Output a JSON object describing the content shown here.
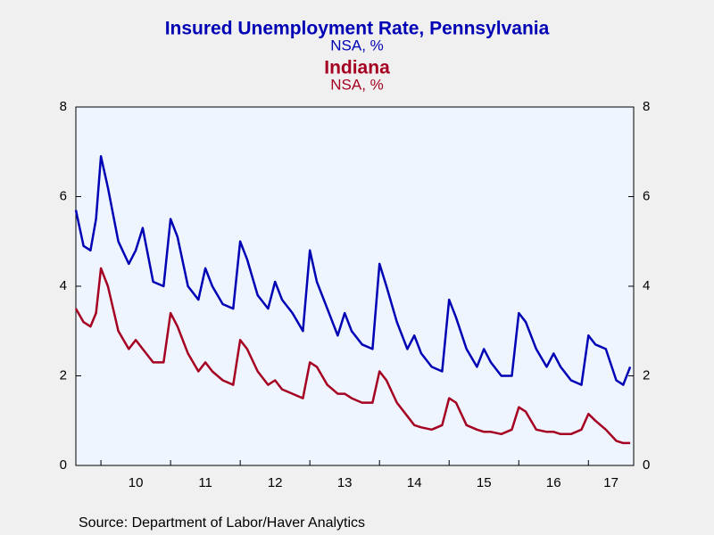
{
  "chart_data": {
    "type": "line",
    "source": "Source:  Department of Labor/Haver Analytics",
    "x": [
      2009.64,
      2009.75,
      2009.85,
      2009.93,
      2010.0,
      2010.1,
      2010.25,
      2010.4,
      2010.5,
      2010.6,
      2010.75,
      2010.9,
      2011.0,
      2011.1,
      2011.25,
      2011.4,
      2011.5,
      2011.6,
      2011.75,
      2011.9,
      2012.0,
      2012.1,
      2012.25,
      2012.4,
      2012.5,
      2012.6,
      2012.75,
      2012.9,
      2013.0,
      2013.1,
      2013.25,
      2013.4,
      2013.5,
      2013.6,
      2013.75,
      2013.9,
      2014.0,
      2014.1,
      2014.25,
      2014.4,
      2014.5,
      2014.6,
      2014.75,
      2014.9,
      2015.0,
      2015.1,
      2015.25,
      2015.4,
      2015.5,
      2015.6,
      2015.75,
      2015.9,
      2016.0,
      2016.1,
      2016.25,
      2016.4,
      2016.5,
      2016.6,
      2016.75,
      2016.9,
      2017.0,
      2017.1,
      2017.25,
      2017.4,
      2017.5,
      2017.6
    ],
    "series": [
      {
        "name": "Insured Unemployment Rate, Pennsylvania",
        "unit": "NSA, %",
        "color": "#0000b4",
        "values": [
          5.7,
          4.9,
          4.8,
          5.5,
          6.9,
          6.2,
          5.0,
          4.5,
          4.8,
          5.3,
          4.1,
          4.0,
          5.5,
          5.1,
          4.0,
          3.7,
          4.4,
          4.0,
          3.6,
          3.5,
          5.0,
          4.6,
          3.8,
          3.5,
          4.1,
          3.7,
          3.4,
          3.0,
          4.8,
          4.1,
          3.5,
          2.9,
          3.4,
          3.0,
          2.7,
          2.6,
          4.5,
          4.0,
          3.2,
          2.6,
          2.9,
          2.5,
          2.2,
          2.1,
          3.7,
          3.3,
          2.6,
          2.2,
          2.6,
          2.3,
          2.0,
          2.0,
          3.4,
          3.2,
          2.6,
          2.2,
          2.5,
          2.2,
          1.9,
          1.8,
          2.9,
          2.7,
          2.6,
          1.9,
          1.8,
          2.2
        ]
      },
      {
        "name": "Indiana",
        "unit": "NSA, %",
        "color": "#a50021",
        "axis": "y2",
        "values": [
          3.5,
          3.2,
          3.1,
          3.4,
          4.4,
          4.0,
          3.0,
          2.6,
          2.8,
          2.6,
          2.3,
          2.3,
          3.4,
          3.1,
          2.5,
          2.1,
          2.3,
          2.1,
          1.9,
          1.8,
          2.8,
          2.6,
          2.1,
          1.8,
          1.9,
          1.7,
          1.6,
          1.5,
          2.3,
          2.2,
          1.8,
          1.6,
          1.6,
          1.5,
          1.4,
          1.4,
          2.1,
          1.9,
          1.4,
          1.1,
          0.9,
          0.85,
          0.8,
          0.9,
          1.5,
          1.4,
          0.9,
          0.8,
          0.75,
          0.75,
          0.7,
          0.8,
          1.3,
          1.2,
          0.8,
          0.75,
          0.75,
          0.7,
          0.7,
          0.8,
          1.15,
          1.0,
          0.8,
          0.55,
          0.5,
          0.5
        ]
      }
    ],
    "xlim": [
      2009.64,
      2017.65
    ],
    "xticks": [
      {
        "value": 2010,
        "label": "10"
      },
      {
        "value": 2011,
        "label": "11"
      },
      {
        "value": 2012,
        "label": "12"
      },
      {
        "value": 2013,
        "label": "13"
      },
      {
        "value": 2014,
        "label": "14"
      },
      {
        "value": 2015,
        "label": "15"
      },
      {
        "value": 2016,
        "label": "16"
      },
      {
        "value": 2017,
        "label": "17"
      }
    ],
    "ylim": [
      0,
      8
    ],
    "yticks": [
      0,
      2,
      4,
      6,
      8
    ],
    "y2lim": [
      0,
      8
    ],
    "y2ticks": [
      0,
      2,
      4,
      6,
      8
    ]
  }
}
